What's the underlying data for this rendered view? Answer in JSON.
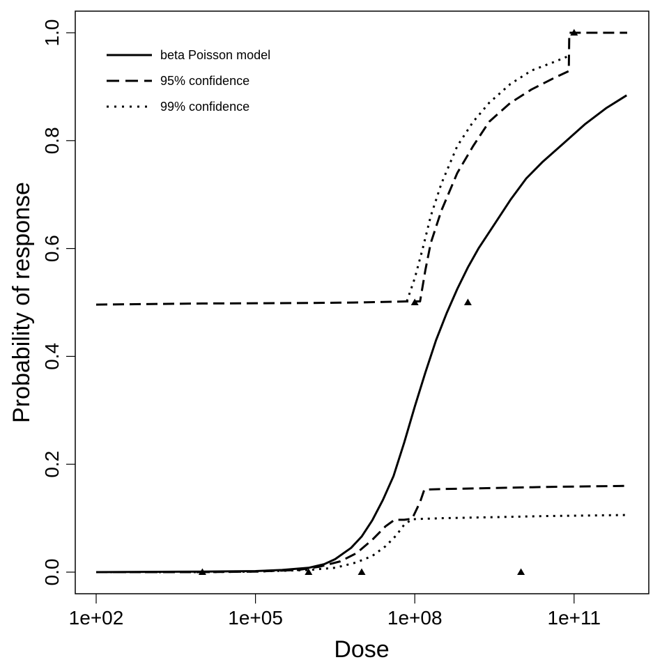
{
  "chart_data": {
    "type": "line",
    "title": "",
    "xlabel": "Dose",
    "ylabel": "Probability of response",
    "x_scale": "log10",
    "xlim_log10": [
      1.6,
      12.4
    ],
    "ylim": [
      -0.04,
      1.04
    ],
    "grid": false,
    "legend_position": "top-left",
    "x_ticks": [
      {
        "value_log10": 2,
        "label": "1e+02"
      },
      {
        "value_log10": 5,
        "label": "1e+05"
      },
      {
        "value_log10": 8,
        "label": "1e+08"
      },
      {
        "value_log10": 11,
        "label": "1e+11"
      }
    ],
    "y_ticks": [
      {
        "value": 0.0,
        "label": "0.0"
      },
      {
        "value": 0.2,
        "label": "0.2"
      },
      {
        "value": 0.4,
        "label": "0.4"
      },
      {
        "value": 0.6,
        "label": "0.6"
      },
      {
        "value": 0.8,
        "label": "0.8"
      },
      {
        "value": 1.0,
        "label": "1.0"
      }
    ],
    "series": [
      {
        "name": "beta Poisson model",
        "style": "solid",
        "log10_x": [
          2.0,
          4.0,
          5.0,
          5.5,
          6.0,
          6.3,
          6.5,
          6.8,
          7.0,
          7.2,
          7.4,
          7.6,
          7.8,
          8.0,
          8.2,
          8.4,
          8.6,
          8.8,
          9.0,
          9.2,
          9.5,
          9.8,
          10.1,
          10.4,
          10.8,
          11.2,
          11.6,
          11.99
        ],
        "y": [
          0.0,
          0.001,
          0.002,
          0.004,
          0.008,
          0.015,
          0.024,
          0.045,
          0.066,
          0.096,
          0.134,
          0.178,
          0.24,
          0.307,
          0.37,
          0.43,
          0.48,
          0.525,
          0.565,
          0.6,
          0.645,
          0.69,
          0.73,
          0.76,
          0.795,
          0.83,
          0.86,
          0.884
        ]
      },
      {
        "name": "95% confidence (upper)",
        "style": "dashed",
        "log10_x": [
          2.0,
          4.0,
          6.0,
          7.0,
          7.85,
          8.1,
          8.2,
          8.3,
          8.5,
          8.8,
          9.1,
          9.4,
          9.8,
          10.2,
          10.6,
          10.9,
          10.91,
          12.0
        ],
        "y": [
          0.496,
          0.498,
          0.499,
          0.5,
          0.502,
          0.502,
          0.56,
          0.61,
          0.67,
          0.74,
          0.79,
          0.835,
          0.87,
          0.895,
          0.915,
          0.929,
          1.0,
          1.0
        ]
      },
      {
        "name": "99% confidence (upper)",
        "style": "dotted",
        "log10_x": [
          7.85,
          8.0,
          8.15,
          8.3,
          8.5,
          8.8,
          9.1,
          9.4,
          9.8,
          10.2,
          10.6,
          10.9
        ],
        "y": [
          0.502,
          0.545,
          0.6,
          0.66,
          0.72,
          0.79,
          0.835,
          0.87,
          0.905,
          0.93,
          0.945,
          0.957
        ]
      },
      {
        "name": "95% confidence (lower)",
        "style": "dashed",
        "log10_x": [
          2.0,
          4.0,
          5.0,
          5.8,
          6.2,
          6.6,
          6.9,
          7.2,
          7.45,
          7.62,
          7.8,
          7.95,
          8.1,
          8.18,
          8.5,
          9.5,
          10.5,
          11.99
        ],
        "y": [
          0.0,
          0.0,
          0.001,
          0.004,
          0.01,
          0.02,
          0.035,
          0.06,
          0.085,
          0.097,
          0.097,
          0.099,
          0.13,
          0.153,
          0.154,
          0.156,
          0.158,
          0.16
        ]
      },
      {
        "name": "99% confidence (lower)",
        "style": "dotted",
        "log10_x": [
          2.0,
          4.0,
          5.0,
          6.0,
          6.5,
          6.9,
          7.2,
          7.45,
          7.65,
          7.8,
          7.95,
          8.5,
          9.5,
          10.5,
          12.0
        ],
        "y": [
          0.0,
          0.0,
          0.001,
          0.004,
          0.008,
          0.018,
          0.03,
          0.048,
          0.068,
          0.088,
          0.098,
          0.1,
          0.102,
          0.104,
          0.106
        ]
      }
    ],
    "observed_points": {
      "marker": "triangle",
      "log10_x": [
        4.0,
        6.0,
        7.0,
        8.0,
        9.0,
        10.0,
        11.0
      ],
      "y": [
        0.0,
        0.0,
        0.0,
        0.5,
        0.5,
        0.0,
        1.0
      ]
    },
    "legend": [
      {
        "label": "beta Poisson model",
        "style": "solid"
      },
      {
        "label": "95% confidence",
        "style": "dashed"
      },
      {
        "label": "99% confidence",
        "style": "dotted"
      }
    ]
  }
}
